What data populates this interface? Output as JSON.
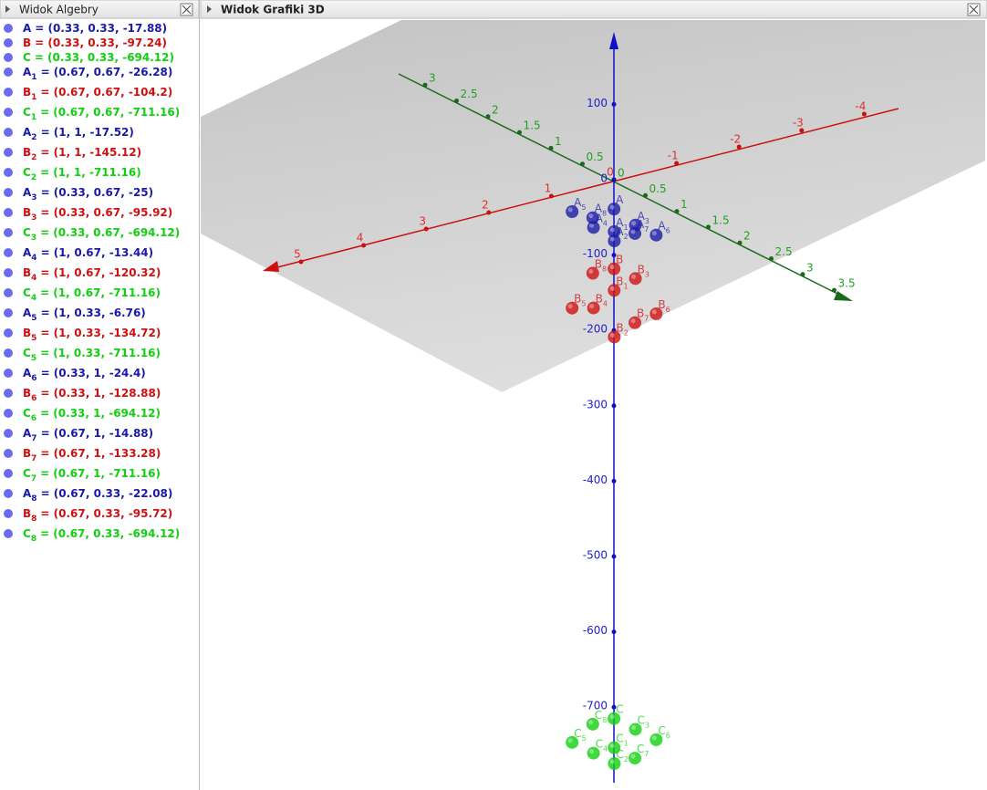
{
  "algebra_view": {
    "title": "Widok Algebry",
    "items": [
      {
        "name": "A",
        "expr": "= (0.33, 0.33, -17.88)",
        "color": "#1a1aa8"
      },
      {
        "name": "B",
        "expr": "= (0.33, 0.33, -97.24)",
        "color": "#d01010"
      },
      {
        "name": "C",
        "expr": "= (0.33, 0.33, -694.12)",
        "color": "#10d010"
      },
      {
        "name": "A",
        "sub": "1",
        "expr": "= (0.67, 0.67, -26.28)",
        "color": "#1a1aa8"
      },
      {
        "name": "B",
        "sub": "1",
        "expr": "= (0.67, 0.67, -104.2)",
        "color": "#d01010"
      },
      {
        "name": "C",
        "sub": "1",
        "expr": "= (0.67, 0.67, -711.16)",
        "color": "#10d010"
      },
      {
        "name": "A",
        "sub": "2",
        "expr": "= (1, 1, -17.52)",
        "color": "#1a1aa8"
      },
      {
        "name": "B",
        "sub": "2",
        "expr": "= (1, 1, -145.12)",
        "color": "#d01010"
      },
      {
        "name": "C",
        "sub": "2",
        "expr": "= (1, 1, -711.16)",
        "color": "#10d010"
      },
      {
        "name": "A",
        "sub": "3",
        "expr": "= (0.33, 0.67, -25)",
        "color": "#1a1aa8"
      },
      {
        "name": "B",
        "sub": "3",
        "expr": "= (0.33, 0.67, -95.92)",
        "color": "#d01010"
      },
      {
        "name": "C",
        "sub": "3",
        "expr": "= (0.33, 0.67, -694.12)",
        "color": "#10d010"
      },
      {
        "name": "A",
        "sub": "4",
        "expr": "= (1, 0.67, -13.44)",
        "color": "#1a1aa8"
      },
      {
        "name": "B",
        "sub": "4",
        "expr": "= (1, 0.67, -120.32)",
        "color": "#d01010"
      },
      {
        "name": "C",
        "sub": "4",
        "expr": "= (1, 0.67, -711.16)",
        "color": "#10d010"
      },
      {
        "name": "A",
        "sub": "5",
        "expr": "= (1, 0.33, -6.76)",
        "color": "#1a1aa8"
      },
      {
        "name": "B",
        "sub": "5",
        "expr": "= (1, 0.33, -134.72)",
        "color": "#d01010"
      },
      {
        "name": "C",
        "sub": "5",
        "expr": "= (1, 0.33, -711.16)",
        "color": "#10d010"
      },
      {
        "name": "A",
        "sub": "6",
        "expr": "= (0.33, 1, -24.4)",
        "color": "#1a1aa8"
      },
      {
        "name": "B",
        "sub": "6",
        "expr": "= (0.33, 1, -128.88)",
        "color": "#d01010"
      },
      {
        "name": "C",
        "sub": "6",
        "expr": "= (0.33, 1, -694.12)",
        "color": "#10d010"
      },
      {
        "name": "A",
        "sub": "7",
        "expr": "= (0.67, 1, -14.88)",
        "color": "#1a1aa8"
      },
      {
        "name": "B",
        "sub": "7",
        "expr": "= (0.67, 1, -133.28)",
        "color": "#d01010"
      },
      {
        "name": "C",
        "sub": "7",
        "expr": "= (0.67, 1, -711.16)",
        "color": "#10d010"
      },
      {
        "name": "A",
        "sub": "8",
        "expr": "= (0.67, 0.33, -22.08)",
        "color": "#1a1aa8"
      },
      {
        "name": "B",
        "sub": "8",
        "expr": "= (0.67, 0.33, -95.72)",
        "color": "#d01010"
      },
      {
        "name": "C",
        "sub": "8",
        "expr": "= (0.67, 0.33, -694.12)",
        "color": "#10d010"
      }
    ]
  },
  "graphics_view": {
    "title": "Widok Grafiki 3D",
    "x_axis_labels": [
      "5",
      "4",
      "3",
      "2",
      "1",
      "0",
      "-1",
      "-2",
      "-3",
      "-4"
    ],
    "y_axis_labels": [
      "3",
      "2.5",
      "2",
      "1.5",
      "1",
      "0.5",
      "0",
      "0.5",
      "1",
      "1.5",
      "2",
      "2.5",
      "3",
      "3.5"
    ],
    "z_axis_labels": [
      "100",
      "0",
      "-100",
      "-200",
      "-300",
      "-400",
      "-500",
      "-600",
      "-700"
    ]
  }
}
